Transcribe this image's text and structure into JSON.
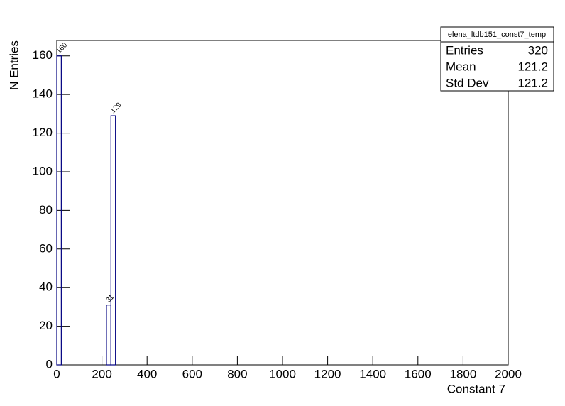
{
  "chart_data": {
    "type": "histogram",
    "stats_title": "elena_ltdb151_const7_temp",
    "stats": [
      {
        "label": "Entries",
        "value": 320
      },
      {
        "label": "Mean",
        "value": 121.2
      },
      {
        "label": "Std Dev",
        "value": 121.2
      }
    ],
    "x_label": "Constant 7",
    "y_label": "N Entries",
    "bins": [
      0,
      20,
      40,
      60,
      80,
      100,
      120,
      140,
      160,
      180,
      200,
      220,
      240,
      260
    ],
    "values": [
      160,
      0,
      0,
      0,
      0,
      0,
      0,
      0,
      0,
      0,
      0,
      31,
      129
    ],
    "color": "#000080",
    "xlim": [
      0,
      2000
    ],
    "xticks": [
      0,
      200,
      400,
      600,
      800,
      1000,
      1200,
      1400,
      1600,
      1800,
      2000
    ],
    "ylim": [
      0,
      168
    ],
    "yticks": [
      0,
      20,
      40,
      60,
      80,
      100,
      120,
      140,
      160
    ]
  }
}
